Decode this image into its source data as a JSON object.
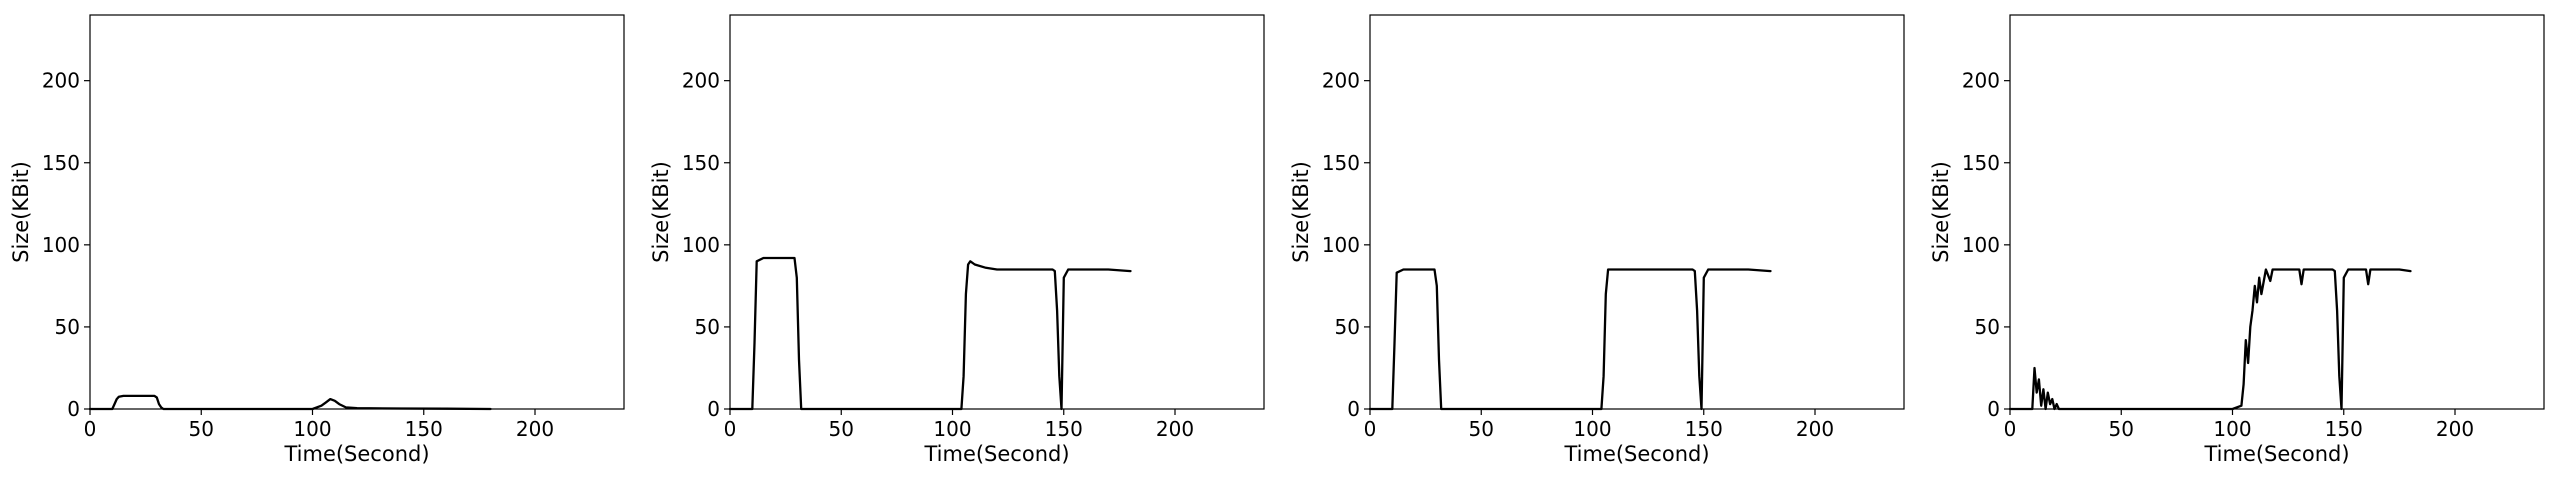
{
  "colors": {
    "line": "#000000",
    "axes": "#000000",
    "background": "#ffffff"
  },
  "chart_data": [
    {
      "type": "line",
      "xlabel": "Time(Second)",
      "ylabel": "Size(KBit)",
      "xlim": [
        0,
        240
      ],
      "ylim": [
        0,
        240
      ],
      "xticks": [
        0,
        50,
        100,
        150,
        200
      ],
      "yticks": [
        0,
        50,
        100,
        150,
        200
      ],
      "grid": false,
      "series": [
        {
          "x": [
            0,
            10,
            11,
            12,
            13,
            15,
            20,
            25,
            29,
            30,
            31,
            32,
            33,
            40,
            60,
            80,
            100,
            104,
            106,
            108,
            110,
            112,
            115,
            120,
            140,
            160,
            180
          ],
          "y": [
            0,
            0,
            3,
            6,
            7.5,
            8,
            8,
            8,
            8,
            7,
            3,
            1,
            0,
            0,
            0,
            0,
            0,
            2,
            4,
            6,
            5,
            3,
            1,
            0.5,
            0.3,
            0.2,
            0
          ]
        }
      ]
    },
    {
      "type": "line",
      "xlabel": "Time(Second)",
      "ylabel": "Size(KBit)",
      "xlim": [
        0,
        240
      ],
      "ylim": [
        0,
        240
      ],
      "xticks": [
        0,
        50,
        100,
        150,
        200
      ],
      "yticks": [
        0,
        50,
        100,
        150,
        200
      ],
      "grid": false,
      "series": [
        {
          "x": [
            0,
            10,
            11,
            12,
            15,
            20,
            25,
            29,
            30,
            31,
            32,
            40,
            60,
            80,
            100,
            104,
            105,
            106,
            107,
            108,
            110,
            115,
            120,
            130,
            140,
            145,
            146,
            147,
            148,
            149,
            150,
            152,
            155,
            160,
            170,
            180
          ],
          "y": [
            0,
            0,
            40,
            90,
            92,
            92,
            92,
            92,
            80,
            30,
            0,
            0,
            0,
            0,
            0,
            0,
            20,
            70,
            88,
            90,
            88,
            86,
            85,
            85,
            85,
            85,
            84,
            60,
            20,
            0,
            80,
            85,
            85,
            85,
            85,
            84
          ]
        }
      ]
    },
    {
      "type": "line",
      "xlabel": "Time(Second)",
      "ylabel": "Size(KBit)",
      "xlim": [
        0,
        240
      ],
      "ylim": [
        0,
        240
      ],
      "xticks": [
        0,
        50,
        100,
        150,
        200
      ],
      "yticks": [
        0,
        50,
        100,
        150,
        200
      ],
      "grid": false,
      "series": [
        {
          "x": [
            0,
            10,
            11,
            12,
            15,
            20,
            25,
            29,
            30,
            31,
            32,
            40,
            60,
            80,
            100,
            104,
            105,
            106,
            107,
            110,
            120,
            130,
            140,
            145,
            146,
            147,
            148,
            149,
            150,
            152,
            155,
            160,
            170,
            180
          ],
          "y": [
            0,
            0,
            40,
            83,
            85,
            85,
            85,
            85,
            75,
            30,
            0,
            0,
            0,
            0,
            0,
            0,
            20,
            70,
            85,
            85,
            85,
            85,
            85,
            85,
            84,
            60,
            20,
            0,
            80,
            85,
            85,
            85,
            85,
            84
          ]
        }
      ]
    },
    {
      "type": "line",
      "xlabel": "Time(Second)",
      "ylabel": "Size(KBit)",
      "xlim": [
        0,
        240
      ],
      "ylim": [
        0,
        240
      ],
      "xticks": [
        0,
        50,
        100,
        150,
        200
      ],
      "yticks": [
        0,
        50,
        100,
        150,
        200
      ],
      "grid": false,
      "series": [
        {
          "x": [
            0,
            10,
            11,
            12,
            13,
            14,
            15,
            16,
            17,
            18,
            19,
            20,
            21,
            22,
            30,
            60,
            90,
            100,
            104,
            105,
            106,
            107,
            108,
            109,
            110,
            111,
            112,
            113,
            115,
            117,
            118,
            120,
            125,
            130,
            131,
            132,
            133,
            135,
            140,
            145,
            146,
            147,
            148,
            149,
            150,
            152,
            155,
            160,
            161,
            162,
            165,
            170,
            175,
            180
          ],
          "y": [
            0,
            0,
            25,
            10,
            18,
            2,
            12,
            0,
            10,
            3,
            6,
            0,
            3,
            0,
            0,
            0,
            0,
            0,
            2,
            15,
            42,
            28,
            50,
            60,
            75,
            65,
            80,
            70,
            85,
            78,
            85,
            85,
            85,
            85,
            76,
            85,
            85,
            85,
            85,
            85,
            84,
            60,
            20,
            0,
            80,
            85,
            85,
            85,
            76,
            85,
            85,
            85,
            85,
            84
          ]
        }
      ]
    }
  ]
}
